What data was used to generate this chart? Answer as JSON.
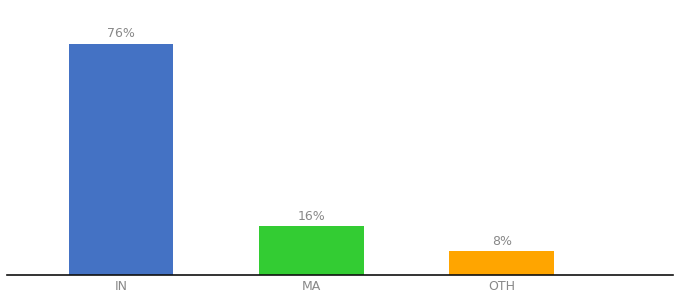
{
  "categories": [
    "IN",
    "MA",
    "OTH"
  ],
  "values": [
    76,
    16,
    8
  ],
  "bar_colors": [
    "#4472C4",
    "#33CC33",
    "#FFA500"
  ],
  "labels": [
    "76%",
    "16%",
    "8%"
  ],
  "ylim": [
    0,
    88
  ],
  "background_color": "#ffffff",
  "label_color": "#888888",
  "tick_color": "#888888",
  "bar_width": 0.55,
  "label_fontsize": 9,
  "tick_fontsize": 9
}
